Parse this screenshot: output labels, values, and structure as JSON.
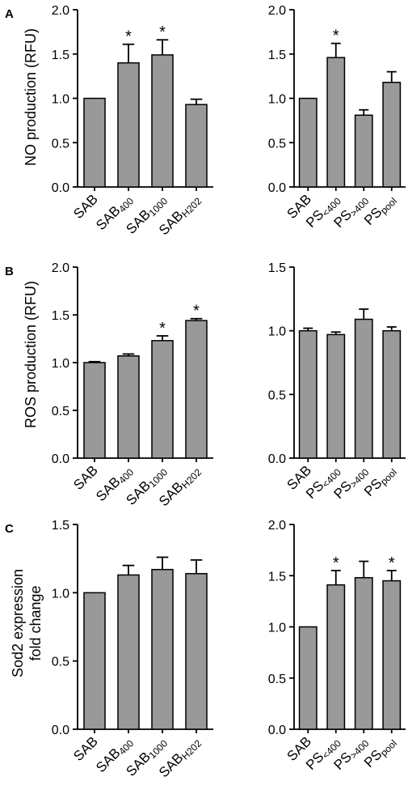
{
  "colors": {
    "bar_fill": "#999999",
    "stroke": "#000000"
  },
  "panel_letters": {
    "A": "A",
    "B": "B",
    "C": "C"
  },
  "y_labels": {
    "A": "NO production (RFU)",
    "B": "ROS production (RFU)",
    "C_line1": "Sod2 expression",
    "C_line2": "fold change"
  },
  "chart_data": [
    {
      "id": "A-left",
      "type": "bar",
      "row": "A",
      "side": "left",
      "ylim": [
        0,
        2.0
      ],
      "yticks": [
        "0.0",
        "0.5",
        "1.0",
        "1.5",
        "2.0"
      ],
      "categories": [
        {
          "base": "SAB",
          "sub": ""
        },
        {
          "base": "SAB",
          "sub": "400"
        },
        {
          "base": "SAB",
          "sub": "1000"
        },
        {
          "base": "SAB",
          "sub": "H202"
        }
      ],
      "values": [
        1.0,
        1.4,
        1.49,
        0.93
      ],
      "errors": [
        0,
        0.21,
        0.17,
        0.06
      ],
      "significance": [
        "",
        "*",
        "*",
        ""
      ]
    },
    {
      "id": "A-right",
      "type": "bar",
      "row": "A",
      "side": "right",
      "ylim": [
        0,
        2.0
      ],
      "yticks": [
        "0.0",
        "0.5",
        "1.0",
        "1.5",
        "2.0"
      ],
      "categories": [
        {
          "base": "SAB",
          "sub": ""
        },
        {
          "base": "PS",
          "sub": "<400"
        },
        {
          "base": "PS",
          "sub": ">400"
        },
        {
          "base": "PS",
          "sub": "pool"
        }
      ],
      "values": [
        1.0,
        1.46,
        0.81,
        1.18
      ],
      "errors": [
        0,
        0.16,
        0.06,
        0.12
      ],
      "significance": [
        "",
        "*",
        "",
        ""
      ]
    },
    {
      "id": "B-left",
      "type": "bar",
      "row": "B",
      "side": "left",
      "ylim": [
        0,
        2.0
      ],
      "yticks": [
        "0.0",
        "0.5",
        "1.0",
        "1.5",
        "2.0"
      ],
      "categories": [
        {
          "base": "SAB",
          "sub": ""
        },
        {
          "base": "SAB",
          "sub": "400"
        },
        {
          "base": "SAB",
          "sub": "1000"
        },
        {
          "base": "SAB",
          "sub": "H202"
        }
      ],
      "values": [
        1.0,
        1.07,
        1.23,
        1.44
      ],
      "errors": [
        0.01,
        0.02,
        0.05,
        0.02
      ],
      "significance": [
        "",
        "",
        "*",
        "*"
      ]
    },
    {
      "id": "B-right",
      "type": "bar",
      "row": "B",
      "side": "right",
      "ylim": [
        0,
        1.5
      ],
      "yticks": [
        "0.0",
        "0.5",
        "1.0",
        "1.5"
      ],
      "categories": [
        {
          "base": "SAB",
          "sub": ""
        },
        {
          "base": "PS",
          "sub": "<400"
        },
        {
          "base": "PS",
          "sub": ">400"
        },
        {
          "base": "PS",
          "sub": "pool"
        }
      ],
      "values": [
        1.0,
        0.97,
        1.09,
        1.0
      ],
      "errors": [
        0.02,
        0.02,
        0.08,
        0.03
      ],
      "significance": [
        "",
        "",
        "",
        ""
      ]
    },
    {
      "id": "C-left",
      "type": "bar",
      "row": "C",
      "side": "left",
      "ylim": [
        0,
        1.5
      ],
      "yticks": [
        "0.0",
        "0.5",
        "1.0",
        "1.5"
      ],
      "categories": [
        {
          "base": "SAB",
          "sub": ""
        },
        {
          "base": "SAB",
          "sub": "400"
        },
        {
          "base": "SAB",
          "sub": "1000"
        },
        {
          "base": "SAB",
          "sub": "H202"
        }
      ],
      "values": [
        1.0,
        1.13,
        1.17,
        1.14
      ],
      "errors": [
        0,
        0.07,
        0.09,
        0.1
      ],
      "significance": [
        "",
        "",
        "",
        ""
      ]
    },
    {
      "id": "C-right",
      "type": "bar",
      "row": "C",
      "side": "right",
      "ylim": [
        0,
        2.0
      ],
      "yticks": [
        "0.0",
        "0.5",
        "1.0",
        "1.5",
        "2.0"
      ],
      "categories": [
        {
          "base": "SAB",
          "sub": ""
        },
        {
          "base": "PS",
          "sub": "<400"
        },
        {
          "base": "PS",
          "sub": ">400"
        },
        {
          "base": "PS",
          "sub": "pool"
        }
      ],
      "values": [
        1.0,
        1.41,
        1.48,
        1.45
      ],
      "errors": [
        0,
        0.14,
        0.16,
        0.1
      ],
      "significance": [
        "",
        "*",
        "",
        "*"
      ]
    }
  ]
}
